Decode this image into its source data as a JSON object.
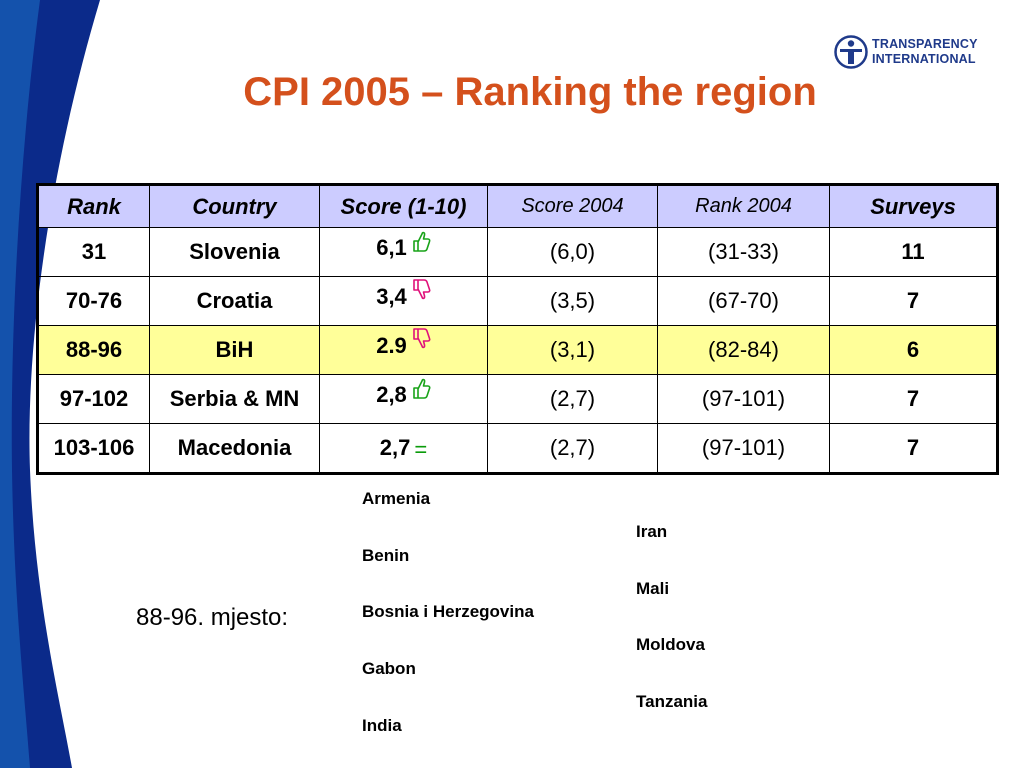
{
  "slide": {
    "title": "CPI 2005 – Ranking the region",
    "logo": {
      "line1": "TRANSPARENCY",
      "line2": "INTERNATIONAL"
    },
    "colors": {
      "title": "#d4501c",
      "header_bg": "#ccccff",
      "highlight_bg": "#ffff99",
      "band_dark": "#0b2a8a",
      "band_light": "#1e73c8"
    }
  },
  "table": {
    "headers": [
      "Rank",
      "Country",
      "Score (1-10)",
      "Score 2004",
      "Rank 2004",
      "Surveys"
    ],
    "rows": [
      {
        "rank": "31",
        "country": "Slovenia",
        "score": "6,1",
        "trend": "up",
        "score2004": "(6,0)",
        "rank2004": "(31-33)",
        "surveys": "11"
      },
      {
        "rank": "70-76",
        "country": "Croatia",
        "score": "3,4",
        "trend": "down",
        "score2004": "(3,5)",
        "rank2004": "(67-70)",
        "surveys": "7"
      },
      {
        "rank": "88-96",
        "country": "BiH",
        "score": "2.9",
        "trend": "down",
        "score2004": "(3,1)",
        "rank2004": "(82-84)",
        "surveys": "6",
        "highlight": true
      },
      {
        "rank": "97-102",
        "country": "Serbia & MN",
        "score": "2,8",
        "trend": "up",
        "score2004": "(2,7)",
        "rank2004": "(97-101)",
        "surveys": "7"
      },
      {
        "rank": "103-106",
        "country": "Macedonia",
        "score": "2,7",
        "trend": "equal",
        "trend_symbol": "=",
        "score2004": "(2,7)",
        "rank2004": "(97-101)",
        "surveys": "7"
      }
    ]
  },
  "placement": {
    "label": "88-96. mjesto:",
    "col1": [
      "Armenia",
      "Benin",
      "Bosnia i Herzegovina",
      "Gabon",
      "India"
    ],
    "col2": [
      "Iran",
      "Mali",
      "Moldova",
      "Tanzania"
    ]
  }
}
